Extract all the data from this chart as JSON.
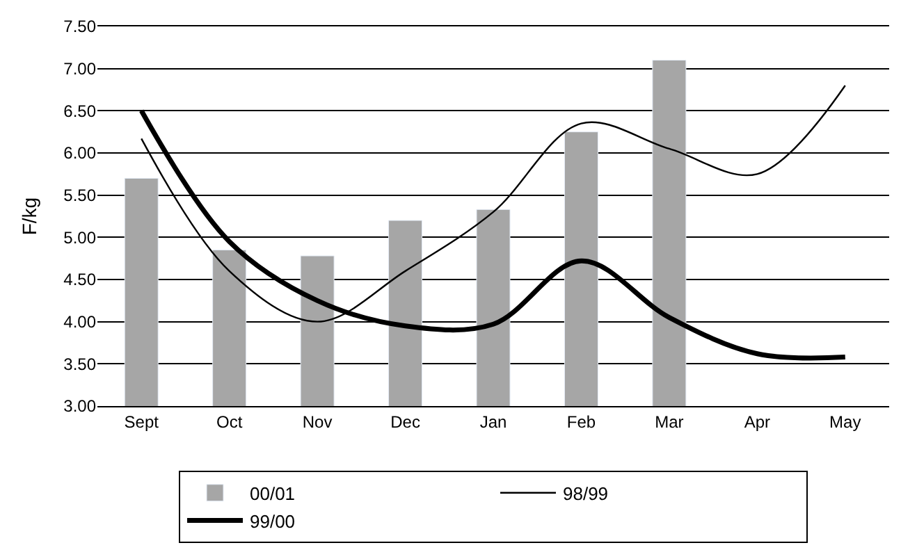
{
  "chart_data": {
    "type": "bar",
    "ylabel": "F/kg",
    "categories": [
      "Sept",
      "Oct",
      "Nov",
      "Dec",
      "Jan",
      "Feb",
      "Mar",
      "Apr",
      "May"
    ],
    "series": [
      {
        "name": "00/01",
        "color": "#a6a6a6",
        "values": [
          5.7,
          4.85,
          4.78,
          5.2,
          5.33,
          6.25,
          7.1,
          null,
          null
        ]
      },
      {
        "name": "98/99",
        "type": "line",
        "color": "#000000",
        "values": [
          6.17,
          4.6,
          4.0,
          4.6,
          5.3,
          6.35,
          6.05,
          5.75,
          6.8
        ]
      },
      {
        "name": "99/00",
        "type": "line",
        "color": "#000000",
        "values": [
          6.5,
          4.95,
          4.25,
          3.95,
          3.97,
          4.72,
          4.05,
          3.62,
          3.58
        ]
      }
    ],
    "ylim": [
      3.0,
      7.5
    ],
    "yticks": [
      {
        "value": 3,
        "label": "3.00"
      },
      {
        "value": 3.5,
        "label": "3.50"
      },
      {
        "value": 4,
        "label": "4.00"
      },
      {
        "value": 4.5,
        "label": "4.50"
      },
      {
        "value": 5,
        "label": "5.00"
      },
      {
        "value": 5.5,
        "label": "5.50"
      },
      {
        "value": 6,
        "label": "6.00"
      },
      {
        "value": 6.5,
        "label": "6.50"
      },
      {
        "value": 7,
        "label": "7.00"
      },
      {
        "value": 7.5,
        "label": "7.50"
      }
    ],
    "grid": "y",
    "legend": "bottom",
    "marker": "none",
    "line_style": "solid"
  }
}
